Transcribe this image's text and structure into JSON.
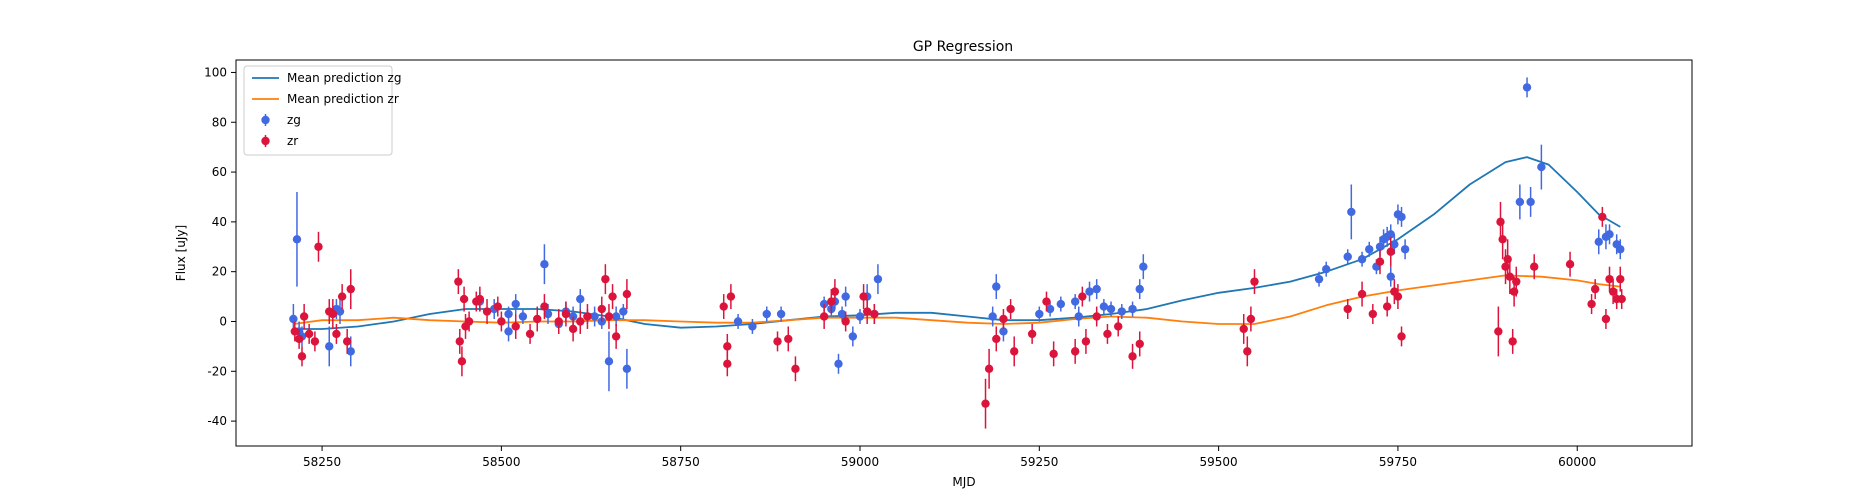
{
  "chart_data": {
    "type": "scatter",
    "title": "GP Regression",
    "xlabel": "MJD",
    "ylabel": "Flux [uJy]",
    "xlim": [
      58130,
      60160
    ],
    "ylim": [
      -50,
      105
    ],
    "xticks": [
      58250,
      58500,
      58750,
      59000,
      59250,
      59500,
      59750,
      60000
    ],
    "yticks": [
      -40,
      -20,
      0,
      20,
      40,
      60,
      80,
      100
    ],
    "grid": false,
    "legend_position": "top-left",
    "colors": {
      "zg_line": "#1f77b4",
      "zr_line": "#ff7f0e",
      "zg_points": "#4169e1",
      "zr_points": "#dc143c"
    },
    "series": [
      {
        "name": "Mean prediction zg",
        "kind": "line",
        "x": [
          58210,
          58250,
          58300,
          58350,
          58400,
          58450,
          58500,
          58550,
          58600,
          58650,
          58700,
          58750,
          58800,
          58850,
          58900,
          58950,
          59000,
          59050,
          59100,
          59150,
          59200,
          59250,
          59300,
          59350,
          59400,
          59450,
          59500,
          59550,
          59600,
          59650,
          59700,
          59750,
          59800,
          59850,
          59900,
          59930,
          59960,
          60000,
          60030,
          60060
        ],
        "y": [
          -3,
          -3,
          -2,
          0,
          3,
          5,
          5,
          5,
          4,
          2,
          -1,
          -2.5,
          -2,
          -1,
          0.5,
          2,
          2.5,
          3.5,
          3.5,
          2,
          0.5,
          0.5,
          1.5,
          3,
          5,
          8.5,
          11.5,
          13.5,
          16,
          20,
          25,
          33,
          43,
          55,
          64,
          66,
          63,
          52,
          43,
          38
        ]
      },
      {
        "name": "Mean prediction zr",
        "kind": "line",
        "x": [
          58210,
          58250,
          58300,
          58350,
          58400,
          58450,
          58500,
          58550,
          58600,
          58650,
          58700,
          58750,
          58800,
          58850,
          58900,
          58950,
          59000,
          59050,
          59100,
          59150,
          59200,
          59250,
          59300,
          59350,
          59400,
          59450,
          59500,
          59550,
          59600,
          59650,
          59700,
          59750,
          59800,
          59850,
          59900,
          59950,
          60000,
          60030,
          60060
        ],
        "y": [
          -1,
          0.5,
          0.5,
          1.5,
          0.5,
          0,
          -0.5,
          0,
          0,
          0.5,
          0.5,
          0,
          -0.5,
          -0.5,
          0.5,
          1.5,
          1.5,
          1.5,
          0.5,
          -0.5,
          -1,
          -0.5,
          1,
          2,
          1.5,
          0,
          -1,
          -1,
          2,
          6.5,
          10,
          12.5,
          14.5,
          16.5,
          18.5,
          18,
          16.5,
          15,
          14
        ]
      },
      {
        "name": "zg",
        "kind": "errorbar",
        "points": [
          [
            58210,
            1,
            6
          ],
          [
            58215,
            33,
            19
          ],
          [
            58218,
            -4,
            4
          ],
          [
            58222,
            -6,
            4
          ],
          [
            58260,
            -10,
            8
          ],
          [
            58270,
            5,
            4
          ],
          [
            58275,
            4,
            5
          ],
          [
            58290,
            -12,
            6
          ],
          [
            58470,
            8,
            4
          ],
          [
            58490,
            5,
            4
          ],
          [
            58510,
            3,
            3
          ],
          [
            58510,
            -4,
            4
          ],
          [
            58520,
            7,
            4
          ],
          [
            58530,
            2,
            3
          ],
          [
            58560,
            23,
            8
          ],
          [
            58565,
            3,
            4
          ],
          [
            58580,
            -1,
            4
          ],
          [
            58590,
            4,
            4
          ],
          [
            58600,
            2,
            4
          ],
          [
            58610,
            9,
            4
          ],
          [
            58620,
            2,
            3
          ],
          [
            58630,
            2,
            4
          ],
          [
            58640,
            0,
            3
          ],
          [
            58650,
            -16,
            12
          ],
          [
            58660,
            2,
            4
          ],
          [
            58670,
            4,
            3
          ],
          [
            58675,
            -19,
            8
          ],
          [
            58830,
            0,
            3
          ],
          [
            58850,
            -2,
            3
          ],
          [
            58870,
            3,
            3
          ],
          [
            58890,
            3,
            3
          ],
          [
            58950,
            7,
            3
          ],
          [
            58960,
            5,
            3
          ],
          [
            58965,
            8,
            3
          ],
          [
            58970,
            -17,
            4
          ],
          [
            58975,
            3,
            3
          ],
          [
            58980,
            10,
            4
          ],
          [
            58990,
            -6,
            4
          ],
          [
            59000,
            2,
            3
          ],
          [
            59010,
            10,
            5
          ],
          [
            59020,
            3,
            4
          ],
          [
            59025,
            17,
            6
          ],
          [
            59185,
            2,
            4
          ],
          [
            59190,
            14,
            5
          ],
          [
            59200,
            -4,
            4
          ],
          [
            59250,
            3,
            3
          ],
          [
            59265,
            5,
            3
          ],
          [
            59280,
            7,
            3
          ],
          [
            59300,
            8,
            3
          ],
          [
            59305,
            2,
            4
          ],
          [
            59320,
            12,
            4
          ],
          [
            59330,
            13,
            4
          ],
          [
            59340,
            6,
            3
          ],
          [
            59350,
            5,
            3
          ],
          [
            59365,
            4,
            3
          ],
          [
            59380,
            5,
            3
          ],
          [
            59390,
            13,
            4
          ],
          [
            59395,
            22,
            5
          ],
          [
            59640,
            17,
            3
          ],
          [
            59650,
            21,
            3
          ],
          [
            59680,
            26,
            3
          ],
          [
            59685,
            44,
            11
          ],
          [
            59700,
            25,
            3
          ],
          [
            59710,
            29,
            3
          ],
          [
            59720,
            22,
            3
          ],
          [
            59725,
            30,
            4
          ],
          [
            59730,
            33,
            4
          ],
          [
            59735,
            34,
            4
          ],
          [
            59740,
            35,
            4
          ],
          [
            59745,
            31,
            4
          ],
          [
            59750,
            43,
            4
          ],
          [
            59755,
            42,
            4
          ],
          [
            59760,
            29,
            4
          ],
          [
            59740,
            18,
            4
          ],
          [
            59920,
            48,
            7
          ],
          [
            59930,
            94,
            4
          ],
          [
            59935,
            48,
            6
          ],
          [
            59950,
            62,
            9
          ],
          [
            60030,
            32,
            5
          ],
          [
            60040,
            34,
            5
          ],
          [
            60045,
            35,
            4
          ],
          [
            60055,
            31,
            4
          ],
          [
            60060,
            29,
            4
          ]
        ]
      },
      {
        "name": "zr",
        "kind": "errorbar",
        "points": [
          [
            58212,
            -4,
            4
          ],
          [
            58218,
            -7,
            4
          ],
          [
            58222,
            -14,
            4
          ],
          [
            58225,
            2,
            5
          ],
          [
            58232,
            -5,
            4
          ],
          [
            58240,
            -8,
            4
          ],
          [
            58245,
            30,
            6
          ],
          [
            58260,
            4,
            5
          ],
          [
            58265,
            3,
            6
          ],
          [
            58270,
            -5,
            4
          ],
          [
            58278,
            10,
            5
          ],
          [
            58285,
            -8,
            5
          ],
          [
            58290,
            13,
            8
          ],
          [
            58440,
            16,
            5
          ],
          [
            58442,
            -8,
            5
          ],
          [
            58445,
            -16,
            6
          ],
          [
            58448,
            9,
            5
          ],
          [
            58450,
            -2,
            5
          ],
          [
            58455,
            0,
            4
          ],
          [
            58465,
            8,
            4
          ],
          [
            58470,
            9,
            5
          ],
          [
            58480,
            4,
            5
          ],
          [
            58495,
            6,
            4
          ],
          [
            58500,
            0,
            4
          ],
          [
            58520,
            -2,
            5
          ],
          [
            58540,
            -5,
            4
          ],
          [
            58550,
            1,
            5
          ],
          [
            58560,
            6,
            5
          ],
          [
            58580,
            0,
            5
          ],
          [
            58590,
            3,
            5
          ],
          [
            58600,
            -3,
            5
          ],
          [
            58610,
            0,
            5
          ],
          [
            58620,
            2,
            5
          ],
          [
            58640,
            5,
            5
          ],
          [
            58645,
            17,
            6
          ],
          [
            58650,
            2,
            5
          ],
          [
            58655,
            10,
            5
          ],
          [
            58660,
            -6,
            5
          ],
          [
            58675,
            11,
            6
          ],
          [
            58810,
            6,
            5
          ],
          [
            58815,
            -10,
            5
          ],
          [
            58820,
            10,
            5
          ],
          [
            58815,
            -17,
            5
          ],
          [
            58885,
            -8,
            4
          ],
          [
            58900,
            -7,
            5
          ],
          [
            58910,
            -19,
            5
          ],
          [
            58950,
            2,
            5
          ],
          [
            58960,
            8,
            5
          ],
          [
            58965,
            12,
            5
          ],
          [
            58980,
            0,
            4
          ],
          [
            59005,
            10,
            5
          ],
          [
            59010,
            4,
            5
          ],
          [
            59020,
            3,
            4
          ],
          [
            59175,
            -33,
            10
          ],
          [
            59180,
            -19,
            8
          ],
          [
            59190,
            -7,
            5
          ],
          [
            59200,
            1,
            4
          ],
          [
            59210,
            5,
            4
          ],
          [
            59215,
            -12,
            6
          ],
          [
            59240,
            -5,
            4
          ],
          [
            59260,
            8,
            4
          ],
          [
            59270,
            -13,
            5
          ],
          [
            59300,
            -12,
            5
          ],
          [
            59310,
            10,
            4
          ],
          [
            59315,
            -8,
            5
          ],
          [
            59330,
            2,
            4
          ],
          [
            59345,
            -5,
            4
          ],
          [
            59360,
            -2,
            4
          ],
          [
            59380,
            -14,
            5
          ],
          [
            59390,
            -9,
            5
          ],
          [
            59535,
            -3,
            6
          ],
          [
            59540,
            -12,
            6
          ],
          [
            59545,
            1,
            5
          ],
          [
            59550,
            16,
            5
          ],
          [
            59680,
            5,
            4
          ],
          [
            59700,
            11,
            5
          ],
          [
            59715,
            3,
            4
          ],
          [
            59725,
            24,
            5
          ],
          [
            59735,
            6,
            4
          ],
          [
            59740,
            28,
            6
          ],
          [
            59745,
            12,
            5
          ],
          [
            59750,
            10,
            5
          ],
          [
            59755,
            -6,
            4
          ],
          [
            59890,
            -4,
            10
          ],
          [
            59893,
            40,
            8
          ],
          [
            59896,
            33,
            8
          ],
          [
            59900,
            22,
            7
          ],
          [
            59903,
            25,
            8
          ],
          [
            59906,
            18,
            7
          ],
          [
            59910,
            -8,
            5
          ],
          [
            59912,
            12,
            6
          ],
          [
            59915,
            16,
            6
          ],
          [
            59940,
            22,
            5
          ],
          [
            59990,
            23,
            5
          ],
          [
            60020,
            7,
            4
          ],
          [
            60025,
            13,
            4
          ],
          [
            60035,
            42,
            4
          ],
          [
            60040,
            1,
            4
          ],
          [
            60045,
            17,
            5
          ],
          [
            60050,
            12,
            5
          ],
          [
            60055,
            9,
            4
          ],
          [
            60060,
            17,
            5
          ],
          [
            60062,
            9,
            4
          ]
        ]
      }
    ]
  }
}
